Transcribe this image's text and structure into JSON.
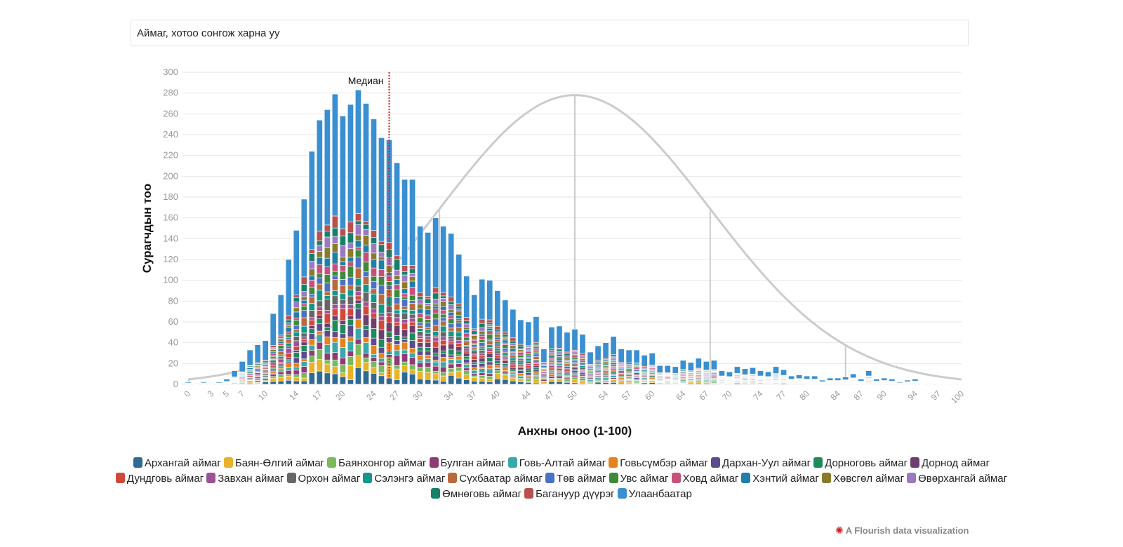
{
  "filter": {
    "label": "Аймаг, хотоо сонгож харна уу"
  },
  "credit": {
    "icon": "flourish-logo-icon",
    "text": "A Flourish data visualization"
  },
  "chart_data": {
    "type": "bar",
    "stacked": true,
    "xlabel": "Анхны оноо (1-100)",
    "ylabel": "Сурагчдын тоо",
    "ylim": [
      0,
      300
    ],
    "yticks": [
      0,
      20,
      40,
      60,
      80,
      100,
      120,
      140,
      160,
      180,
      200,
      220,
      240,
      260,
      280,
      300
    ],
    "xticks": [
      0,
      3,
      5,
      7,
      10,
      14,
      17,
      20,
      24,
      27,
      30,
      34,
      37,
      40,
      44,
      47,
      50,
      54,
      57,
      60,
      64,
      67,
      70,
      74,
      77,
      80,
      84,
      87,
      90,
      94,
      97,
      100
    ],
    "grid": true,
    "median": {
      "label": "Медиан",
      "x": 26,
      "color": "#e0201b"
    },
    "bins": [
      {
        "x": 0,
        "total": 2
      },
      {
        "x": 1,
        "total": 1
      },
      {
        "x": 2,
        "total": 2
      },
      {
        "x": 3,
        "total": 1
      },
      {
        "x": 4,
        "total": 2
      },
      {
        "x": 5,
        "total": 5
      },
      {
        "x": 6,
        "total": 13
      },
      {
        "x": 7,
        "total": 22
      },
      {
        "x": 8,
        "total": 33
      },
      {
        "x": 9,
        "total": 38
      },
      {
        "x": 10,
        "total": 42
      },
      {
        "x": 11,
        "total": 68
      },
      {
        "x": 12,
        "total": 86
      },
      {
        "x": 13,
        "total": 120
      },
      {
        "x": 14,
        "total": 148
      },
      {
        "x": 15,
        "total": 178
      },
      {
        "x": 16,
        "total": 224
      },
      {
        "x": 17,
        "total": 254
      },
      {
        "x": 18,
        "total": 264
      },
      {
        "x": 19,
        "total": 279
      },
      {
        "x": 20,
        "total": 258
      },
      {
        "x": 21,
        "total": 269
      },
      {
        "x": 22,
        "total": 283
      },
      {
        "x": 23,
        "total": 270
      },
      {
        "x": 24,
        "total": 255
      },
      {
        "x": 25,
        "total": 237
      },
      {
        "x": 26,
        "total": 235
      },
      {
        "x": 27,
        "total": 213
      },
      {
        "x": 28,
        "total": 197
      },
      {
        "x": 29,
        "total": 197
      },
      {
        "x": 30,
        "total": 152
      },
      {
        "x": 31,
        "total": 146
      },
      {
        "x": 32,
        "total": 160
      },
      {
        "x": 33,
        "total": 152
      },
      {
        "x": 34,
        "total": 145
      },
      {
        "x": 35,
        "total": 125
      },
      {
        "x": 36,
        "total": 104
      },
      {
        "x": 37,
        "total": 86
      },
      {
        "x": 38,
        "total": 101
      },
      {
        "x": 39,
        "total": 100
      },
      {
        "x": 40,
        "total": 90
      },
      {
        "x": 41,
        "total": 81
      },
      {
        "x": 42,
        "total": 72
      },
      {
        "x": 43,
        "total": 62
      },
      {
        "x": 44,
        "total": 60
      },
      {
        "x": 45,
        "total": 65
      },
      {
        "x": 46,
        "total": 34
      },
      {
        "x": 47,
        "total": 55
      },
      {
        "x": 48,
        "total": 56
      },
      {
        "x": 49,
        "total": 50
      },
      {
        "x": 50,
        "total": 53
      },
      {
        "x": 51,
        "total": 48
      },
      {
        "x": 52,
        "total": 31
      },
      {
        "x": 53,
        "total": 37
      },
      {
        "x": 54,
        "total": 40
      },
      {
        "x": 55,
        "total": 46
      },
      {
        "x": 56,
        "total": 34
      },
      {
        "x": 57,
        "total": 33
      },
      {
        "x": 58,
        "total": 33
      },
      {
        "x": 59,
        "total": 28
      },
      {
        "x": 60,
        "total": 30
      },
      {
        "x": 61,
        "total": 18
      },
      {
        "x": 62,
        "total": 18
      },
      {
        "x": 63,
        "total": 17
      },
      {
        "x": 64,
        "total": 23
      },
      {
        "x": 65,
        "total": 21
      },
      {
        "x": 66,
        "total": 25
      },
      {
        "x": 67,
        "total": 22
      },
      {
        "x": 68,
        "total": 23
      },
      {
        "x": 69,
        "total": 13
      },
      {
        "x": 70,
        "total": 12
      },
      {
        "x": 71,
        "total": 17
      },
      {
        "x": 72,
        "total": 15
      },
      {
        "x": 73,
        "total": 16
      },
      {
        "x": 74,
        "total": 13
      },
      {
        "x": 75,
        "total": 12
      },
      {
        "x": 76,
        "total": 17
      },
      {
        "x": 77,
        "total": 14
      },
      {
        "x": 78,
        "total": 8
      },
      {
        "x": 79,
        "total": 9
      },
      {
        "x": 80,
        "total": 8
      },
      {
        "x": 81,
        "total": 8
      },
      {
        "x": 82,
        "total": 4
      },
      {
        "x": 83,
        "total": 6
      },
      {
        "x": 84,
        "total": 6
      },
      {
        "x": 85,
        "total": 7
      },
      {
        "x": 86,
        "total": 10
      },
      {
        "x": 87,
        "total": 5
      },
      {
        "x": 88,
        "total": 13
      },
      {
        "x": 89,
        "total": 5
      },
      {
        "x": 90,
        "total": 6
      },
      {
        "x": 91,
        "total": 5
      },
      {
        "x": 92,
        "total": 2
      },
      {
        "x": 93,
        "total": 4
      },
      {
        "x": 94,
        "total": 5
      },
      {
        "x": 95,
        "total": 1
      },
      {
        "x": 96,
        "total": 1
      },
      {
        "x": 97,
        "total": 1
      },
      {
        "x": 98,
        "total": 1
      },
      {
        "x": 99,
        "total": 1
      },
      {
        "x": 100,
        "total": 1
      }
    ],
    "normal_curve": {
      "mean": 50,
      "peak": 278,
      "sd": 17.5,
      "color": "#cccccc"
    },
    "series": [
      {
        "name": "Архангай аймаг",
        "color": "#2e6a94"
      },
      {
        "name": "Баян-Өлгий аймаг",
        "color": "#e8b32a"
      },
      {
        "name": "Баянхонгор аймаг",
        "color": "#7ab95e"
      },
      {
        "name": "Булган аймаг",
        "color": "#8e3b74"
      },
      {
        "name": "Говь-Алтай аймаг",
        "color": "#3aa8a8"
      },
      {
        "name": "Говьсүмбэр аймаг",
        "color": "#e2831e"
      },
      {
        "name": "Дархан-Уул аймаг",
        "color": "#5c4b8e"
      },
      {
        "name": "Дорноговь аймаг",
        "color": "#1f8a5c"
      },
      {
        "name": "Дорнод аймаг",
        "color": "#6d3e6e"
      },
      {
        "name": "Дундговь аймаг",
        "color": "#d0483a"
      },
      {
        "name": "Завхан аймаг",
        "color": "#9d5199"
      },
      {
        "name": "Орхон аймаг",
        "color": "#666666"
      },
      {
        "name": "Сэлэнгэ аймаг",
        "color": "#14968a"
      },
      {
        "name": "Сүхбаатар аймаг",
        "color": "#b86a3c"
      },
      {
        "name": "Төв аймаг",
        "color": "#4a72c4"
      },
      {
        "name": "Увс аймаг",
        "color": "#3e8a3a"
      },
      {
        "name": "Ховд аймаг",
        "color": "#c4517c"
      },
      {
        "name": "Хэнтий аймаг",
        "color": "#1f7fa8"
      },
      {
        "name": "Хөвсгөл аймаг",
        "color": "#8a7a2a"
      },
      {
        "name": "Өвөрхангай аймаг",
        "color": "#9b7ac4"
      },
      {
        "name": "Өмнөговь аймаг",
        "color": "#16806a"
      },
      {
        "name": "Багануур дүүрэг",
        "color": "#b85050"
      },
      {
        "name": "Улаанбаатар",
        "color": "#3a8fd0"
      }
    ]
  }
}
